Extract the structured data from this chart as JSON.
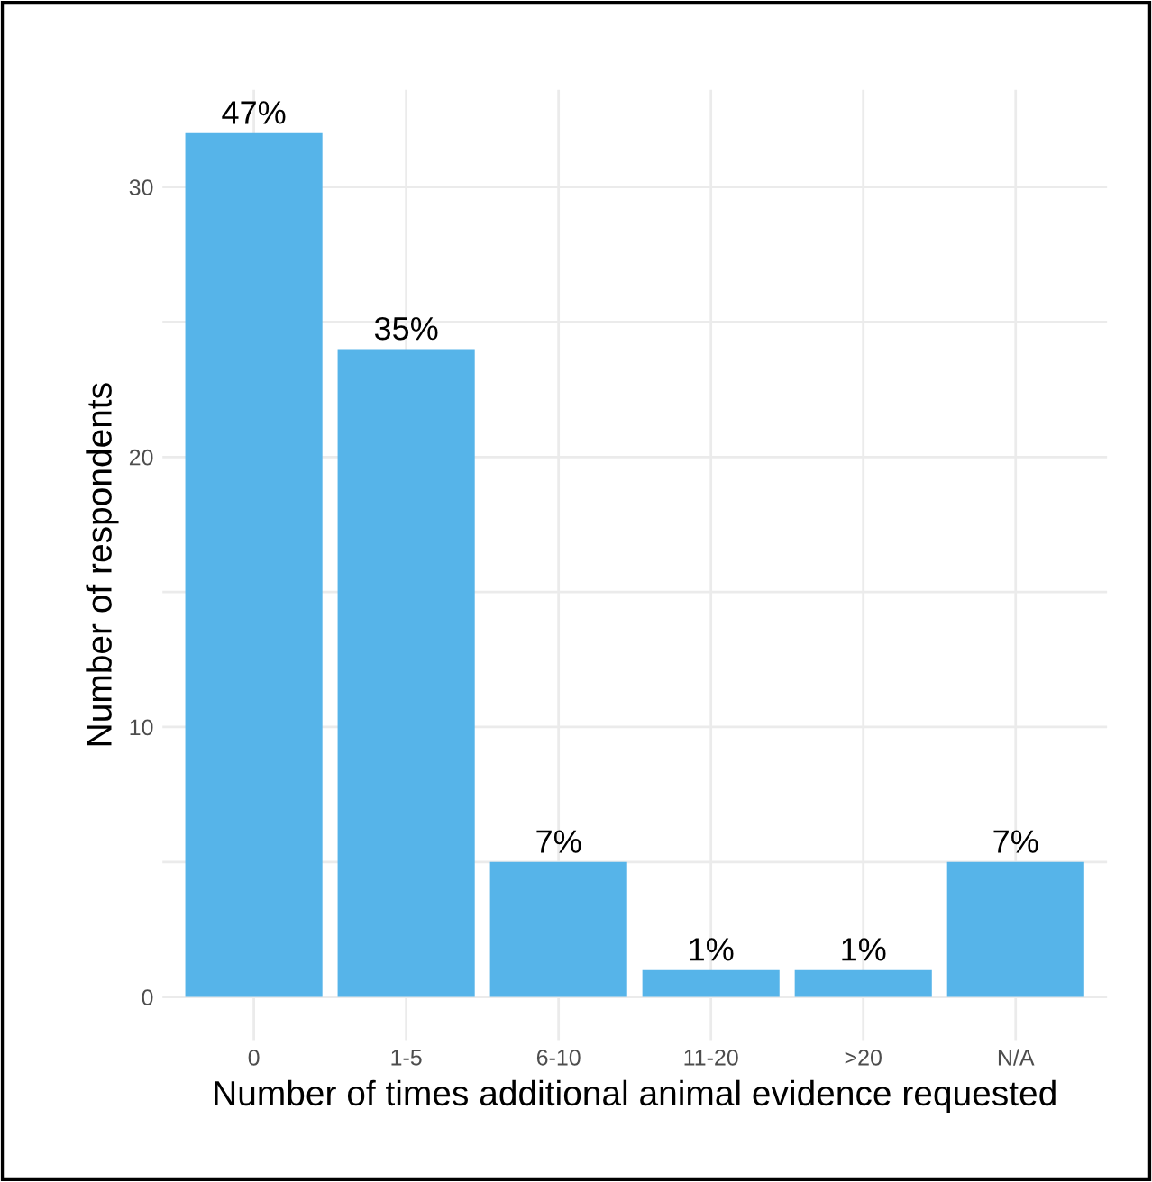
{
  "chart_data": {
    "type": "bar",
    "xlabel": "Number of times additional animal evidence requested",
    "ylabel": "Number of respondents",
    "categories": [
      "0",
      "1-5",
      "6-10",
      "11-20",
      ">20",
      "N/A"
    ],
    "values": [
      32,
      24,
      5,
      1,
      1,
      5
    ],
    "annotations": [
      {
        "text": "47%",
        "x": "0",
        "y": 32
      },
      {
        "text": "35%",
        "x": "1-5",
        "y": 24
      },
      {
        "text": "7%",
        "x": "6-10",
        "y": 5
      },
      {
        "text": "1%",
        "x": "11-20",
        "y": 1
      },
      {
        "text": "1%",
        "x": ">20",
        "y": 1
      },
      {
        "text": "7%",
        "x": "N/A",
        "y": 5
      }
    ],
    "color": "#56b4e9",
    "ylim": [
      -1.6,
      33.6
    ],
    "yticks": [
      0,
      {
        "value": 5,
        "label": null
      },
      10,
      {
        "value": 15,
        "label": null
      },
      20,
      {
        "value": 25,
        "label": null
      },
      30
    ],
    "grid": true
  }
}
